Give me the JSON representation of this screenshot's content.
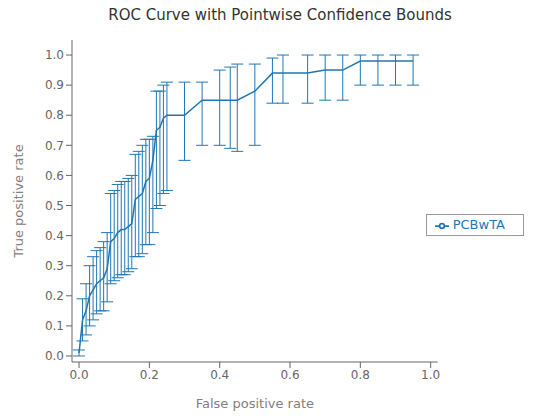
{
  "chart_data": {
    "type": "line",
    "title": "ROC Curve with Pointwise Confidence Bounds",
    "xlabel": "False positive rate",
    "ylabel": "True positive rate",
    "x": [
      0.0,
      0.01,
      0.02,
      0.03,
      0.04,
      0.05,
      0.06,
      0.07,
      0.08,
      0.09,
      0.1,
      0.11,
      0.12,
      0.13,
      0.14,
      0.15,
      0.16,
      0.17,
      0.18,
      0.19,
      0.2,
      0.21,
      0.22,
      0.23,
      0.24,
      0.25,
      0.3,
      0.35,
      0.4,
      0.43,
      0.45,
      0.5,
      0.55,
      0.58,
      0.65,
      0.7,
      0.75,
      0.8,
      0.85,
      0.9,
      0.95
    ],
    "series": [
      {
        "name": "PCBwTA",
        "color": "#1f77b4",
        "values": [
          0.01,
          0.12,
          0.15,
          0.2,
          0.22,
          0.24,
          0.25,
          0.26,
          0.29,
          0.38,
          0.39,
          0.41,
          0.42,
          0.42,
          0.43,
          0.44,
          0.52,
          0.53,
          0.54,
          0.58,
          0.59,
          0.65,
          0.75,
          0.76,
          0.79,
          0.8,
          0.8,
          0.85,
          0.85,
          0.85,
          0.85,
          0.88,
          0.94,
          0.94,
          0.94,
          0.95,
          0.95,
          0.98,
          0.98,
          0.98,
          0.98
        ],
        "lower": [
          0.0,
          0.05,
          0.07,
          0.1,
          0.12,
          0.14,
          0.15,
          0.15,
          0.18,
          0.24,
          0.25,
          0.26,
          0.27,
          0.27,
          0.28,
          0.29,
          0.33,
          0.33,
          0.34,
          0.37,
          0.37,
          0.41,
          0.49,
          0.5,
          0.54,
          0.55,
          0.65,
          0.7,
          0.7,
          0.69,
          0.68,
          0.7,
          0.84,
          0.84,
          0.84,
          0.85,
          0.85,
          0.9,
          0.9,
          0.9,
          0.9
        ],
        "upper": [
          0.02,
          0.19,
          0.24,
          0.3,
          0.33,
          0.35,
          0.36,
          0.38,
          0.41,
          0.54,
          0.55,
          0.57,
          0.58,
          0.58,
          0.59,
          0.6,
          0.67,
          0.68,
          0.7,
          0.72,
          0.72,
          0.73,
          0.88,
          0.88,
          0.9,
          0.91,
          0.91,
          0.91,
          0.95,
          0.96,
          0.97,
          0.97,
          0.99,
          1.0,
          1.0,
          1.0,
          1.0,
          1.0,
          1.0,
          1.0,
          1.0
        ]
      }
    ],
    "xlim": [
      -0.02,
      1.02
    ],
    "ylim": [
      -0.02,
      1.05
    ],
    "xticks": [
      {
        "value": 0,
        "label": "0.0"
      },
      0.2,
      0.4,
      0.6,
      0.8,
      {
        "value": 1,
        "label": "1.0"
      }
    ],
    "yticks": [
      {
        "value": 0,
        "label": "0.0"
      },
      0.1,
      0.2,
      0.3,
      0.4,
      0.5,
      0.6,
      0.7,
      0.8,
      0.9,
      {
        "value": 1,
        "label": "1.0"
      }
    ],
    "grid": false,
    "legend": "right"
  }
}
